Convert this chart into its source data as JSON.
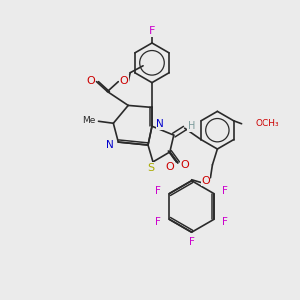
{
  "bg_color": "#ebebeb",
  "C": "#2a2a2a",
  "N": "#0000cc",
  "O": "#cc0000",
  "S": "#aaaa00",
  "F": "#cc00cc",
  "H": "#7a9a9a",
  "bond": "#2a2a2a"
}
